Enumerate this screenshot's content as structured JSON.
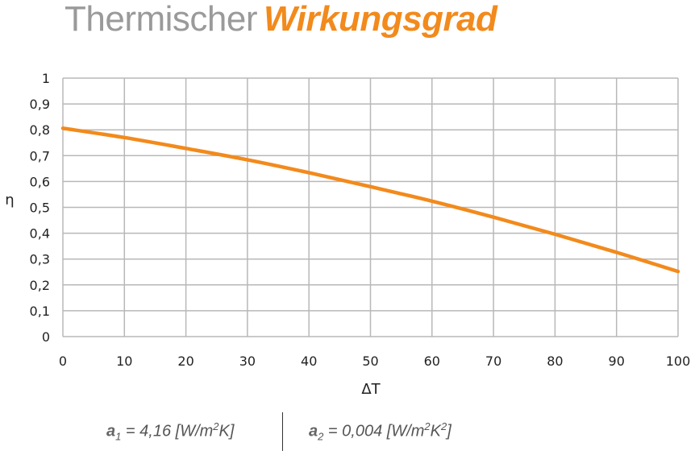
{
  "header": {
    "title_light": "Thermischer",
    "title_bold": "Wirkungsgrad",
    "title_bold_color": "#f28a1c",
    "title_light_color": "#9a9a9a"
  },
  "chart_data": {
    "type": "line",
    "title": "Thermischer Wirkungsgrad",
    "xlabel": "ΔT",
    "ylabel": "η",
    "xlim": [
      0,
      100
    ],
    "ylim": [
      0,
      1
    ],
    "x_ticks": [
      0,
      10,
      20,
      30,
      40,
      50,
      60,
      70,
      80,
      90,
      100
    ],
    "y_ticks": [
      "0",
      "0,1",
      "0,2",
      "0,3",
      "0,4",
      "0,5",
      "0,6",
      "0,7",
      "0,8",
      "0,9",
      "1"
    ],
    "grid": true,
    "legend": "none",
    "series": [
      {
        "color": "#f28a1c",
        "x": [
          0,
          10,
          20,
          30,
          40,
          50,
          60,
          70,
          80,
          90,
          100
        ],
        "y": [
          0.806,
          0.77,
          0.728,
          0.684,
          0.634,
          0.58,
          0.524,
          0.462,
          0.396,
          0.326,
          0.252
        ]
      }
    ]
  },
  "parameters": {
    "a1": {
      "symbol": "a",
      "sub": "1",
      "text": " = 4,16 [W/m",
      "sup": "2",
      "tail": "K]"
    },
    "a2": {
      "symbol": "a",
      "sub": "2",
      "text": " = 0,004 [W/m",
      "sup": "2",
      "mid": "K",
      "sup2": "2",
      "tail": "]"
    }
  }
}
